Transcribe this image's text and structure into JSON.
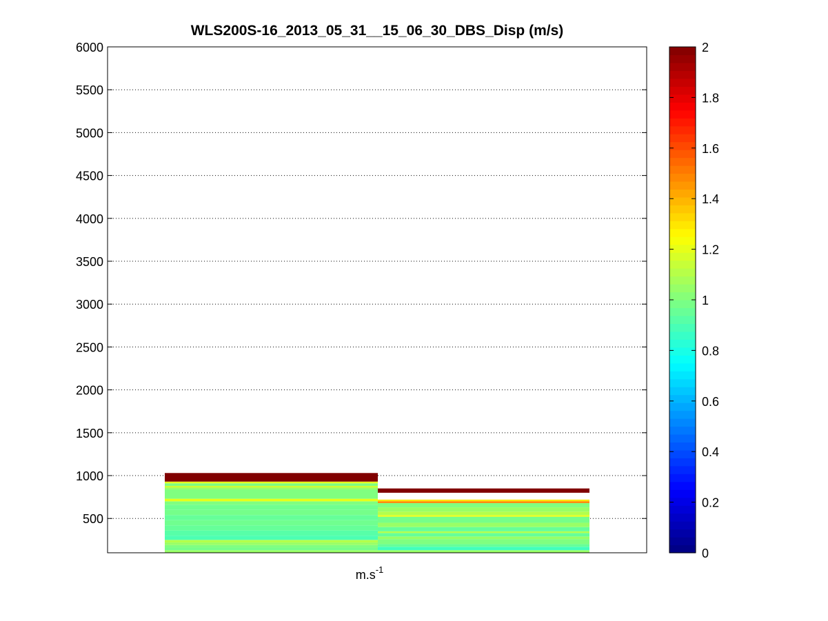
{
  "chart_data": {
    "type": "heatmap",
    "title": "WLS200S-16_2013_05_31__15_06_30_DBS_Disp (m/s)",
    "xlabel": "m.s",
    "xlabel_superscript": "-1",
    "ylabel": "",
    "ylim": [
      100,
      6000
    ],
    "yticks": [
      500,
      1000,
      1500,
      2000,
      2500,
      3000,
      3500,
      4000,
      4500,
      5000,
      5500,
      6000
    ],
    "grid": "y-dotted",
    "colorbar": {
      "colormap": "jet",
      "clim": [
        0,
        2
      ],
      "ticks": [
        0,
        0.2,
        0.4,
        0.6,
        0.8,
        1,
        1.2,
        1.4,
        1.6,
        1.8,
        2
      ],
      "tick_labels": [
        "0",
        "0.2",
        "0.4",
        "0.6",
        "0.8",
        "1",
        "1.2",
        "1.4",
        "1.6",
        "1.8",
        "2"
      ],
      "placement": "right"
    },
    "columns": [
      {
        "cells": [
          {
            "alt_from": 100,
            "alt_to": 130,
            "value": 1.05
          },
          {
            "alt_from": 130,
            "alt_to": 160,
            "value": 0.98
          },
          {
            "alt_from": 160,
            "alt_to": 190,
            "value": 1.0
          },
          {
            "alt_from": 190,
            "alt_to": 220,
            "value": 1.05
          },
          {
            "alt_from": 220,
            "alt_to": 250,
            "value": 1.1
          },
          {
            "alt_from": 250,
            "alt_to": 300,
            "value": 0.9
          },
          {
            "alt_from": 300,
            "alt_to": 360,
            "value": 0.92
          },
          {
            "alt_from": 360,
            "alt_to": 420,
            "value": 0.95
          },
          {
            "alt_from": 420,
            "alt_to": 480,
            "value": 0.97
          },
          {
            "alt_from": 480,
            "alt_to": 540,
            "value": 0.95
          },
          {
            "alt_from": 540,
            "alt_to": 600,
            "value": 0.98
          },
          {
            "alt_from": 600,
            "alt_to": 660,
            "value": 0.97
          },
          {
            "alt_from": 660,
            "alt_to": 700,
            "value": 1.0
          },
          {
            "alt_from": 700,
            "alt_to": 730,
            "value": 1.2
          },
          {
            "alt_from": 730,
            "alt_to": 840,
            "value": 1.0
          },
          {
            "alt_from": 840,
            "alt_to": 860,
            "value": 1.05
          },
          {
            "alt_from": 860,
            "alt_to": 880,
            "value": 1.15
          },
          {
            "alt_from": 880,
            "alt_to": 910,
            "value": 1.0
          },
          {
            "alt_from": 910,
            "alt_to": 930,
            "value": 1.2
          },
          {
            "alt_from": 930,
            "alt_to": 1030,
            "value": 2.0
          }
        ]
      },
      {
        "cells": [
          {
            "alt_from": 100,
            "alt_to": 130,
            "value": 1.05
          },
          {
            "alt_from": 130,
            "alt_to": 170,
            "value": 0.88
          },
          {
            "alt_from": 170,
            "alt_to": 200,
            "value": 0.95
          },
          {
            "alt_from": 200,
            "alt_to": 260,
            "value": 1.0
          },
          {
            "alt_from": 260,
            "alt_to": 290,
            "value": 1.05
          },
          {
            "alt_from": 290,
            "alt_to": 330,
            "value": 0.95
          },
          {
            "alt_from": 330,
            "alt_to": 350,
            "value": 1.1
          },
          {
            "alt_from": 350,
            "alt_to": 400,
            "value": 0.95
          },
          {
            "alt_from": 400,
            "alt_to": 450,
            "value": 1.05
          },
          {
            "alt_from": 450,
            "alt_to": 520,
            "value": 0.98
          },
          {
            "alt_from": 520,
            "alt_to": 540,
            "value": 1.2
          },
          {
            "alt_from": 540,
            "alt_to": 580,
            "value": 1.1
          },
          {
            "alt_from": 580,
            "alt_to": 630,
            "value": 1.05
          },
          {
            "alt_from": 630,
            "alt_to": 680,
            "value": 1.0
          },
          {
            "alt_from": 680,
            "alt_to": 700,
            "value": 1.5
          },
          {
            "alt_from": 700,
            "alt_to": 720,
            "value": 1.3
          },
          {
            "alt_from": 800,
            "alt_to": 850,
            "value": 2.0
          }
        ]
      }
    ]
  }
}
